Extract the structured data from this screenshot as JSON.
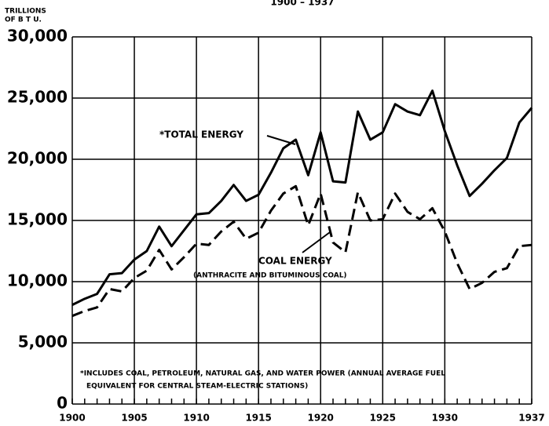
{
  "chart_data": {
    "type": "line",
    "subtitle": "1900 – 1937",
    "ylabel": [
      "TRILLIONS",
      "OF B T U."
    ],
    "annotations": [
      "*TOTAL ENERGY",
      "COAL ENERGY",
      "(ANTHRACITE AND BITUMINOUS COAL)",
      "*INCLUDES COAL, PETROLEUM, NATURAL GAS, AND WATER POWER (ANNUAL AVERAGE FUEL",
      "EQUIVALENT FOR CENTRAL STEAM-ELECTRIC STATIONS)"
    ],
    "x": [
      1900,
      1901,
      1902,
      1903,
      1904,
      1905,
      1906,
      1907,
      1908,
      1909,
      1910,
      1911,
      1912,
      1913,
      1914,
      1915,
      1916,
      1917,
      1918,
      1919,
      1920,
      1921,
      1922,
      1923,
      1924,
      1925,
      1926,
      1927,
      1928,
      1929,
      1930,
      1931,
      1932,
      1933,
      1934,
      1935,
      1936,
      1937
    ],
    "series": [
      {
        "name": "TOTAL ENERGY",
        "color": "#000000",
        "dash": false,
        "values": [
          8100,
          8600,
          9000,
          10600,
          10700,
          11800,
          12500,
          14500,
          12900,
          14200,
          15500,
          15600,
          16600,
          17900,
          16600,
          17100,
          18900,
          20900,
          21600,
          18700,
          22200,
          18200,
          18100,
          23900,
          21600,
          22200,
          24500,
          23900,
          23600,
          25600,
          22300,
          19500,
          17000,
          18000,
          19100,
          20100,
          23000,
          24200
        ]
      },
      {
        "name": "COAL ENERGY",
        "color": "#000000",
        "dash": true,
        "values": [
          7200,
          7600,
          7900,
          9400,
          9200,
          10300,
          10900,
          12600,
          11000,
          12000,
          13100,
          13000,
          14100,
          14900,
          13500,
          14000,
          15800,
          17200,
          17800,
          14600,
          17200,
          13200,
          12400,
          17300,
          15000,
          15100,
          17200,
          15700,
          15100,
          16000,
          14100,
          11500,
          9400,
          9900,
          10800,
          11100,
          12900,
          13000
        ]
      }
    ],
    "xlim": [
      1900,
      1937
    ],
    "xticks": [
      1900,
      1905,
      1910,
      1915,
      1920,
      1925,
      1930,
      1937
    ],
    "ylim": [
      0,
      30000
    ],
    "yticks": [
      0,
      {
        "value": 5000,
        "label": "5,000"
      },
      {
        "value": 10000,
        "label": "10,000"
      },
      {
        "value": 15000,
        "label": "15,000"
      },
      {
        "value": 20000,
        "label": "20,000"
      },
      {
        "value": 25000,
        "label": "25,000"
      },
      {
        "value": 30000,
        "label": "30,000"
      }
    ],
    "grid": true
  }
}
